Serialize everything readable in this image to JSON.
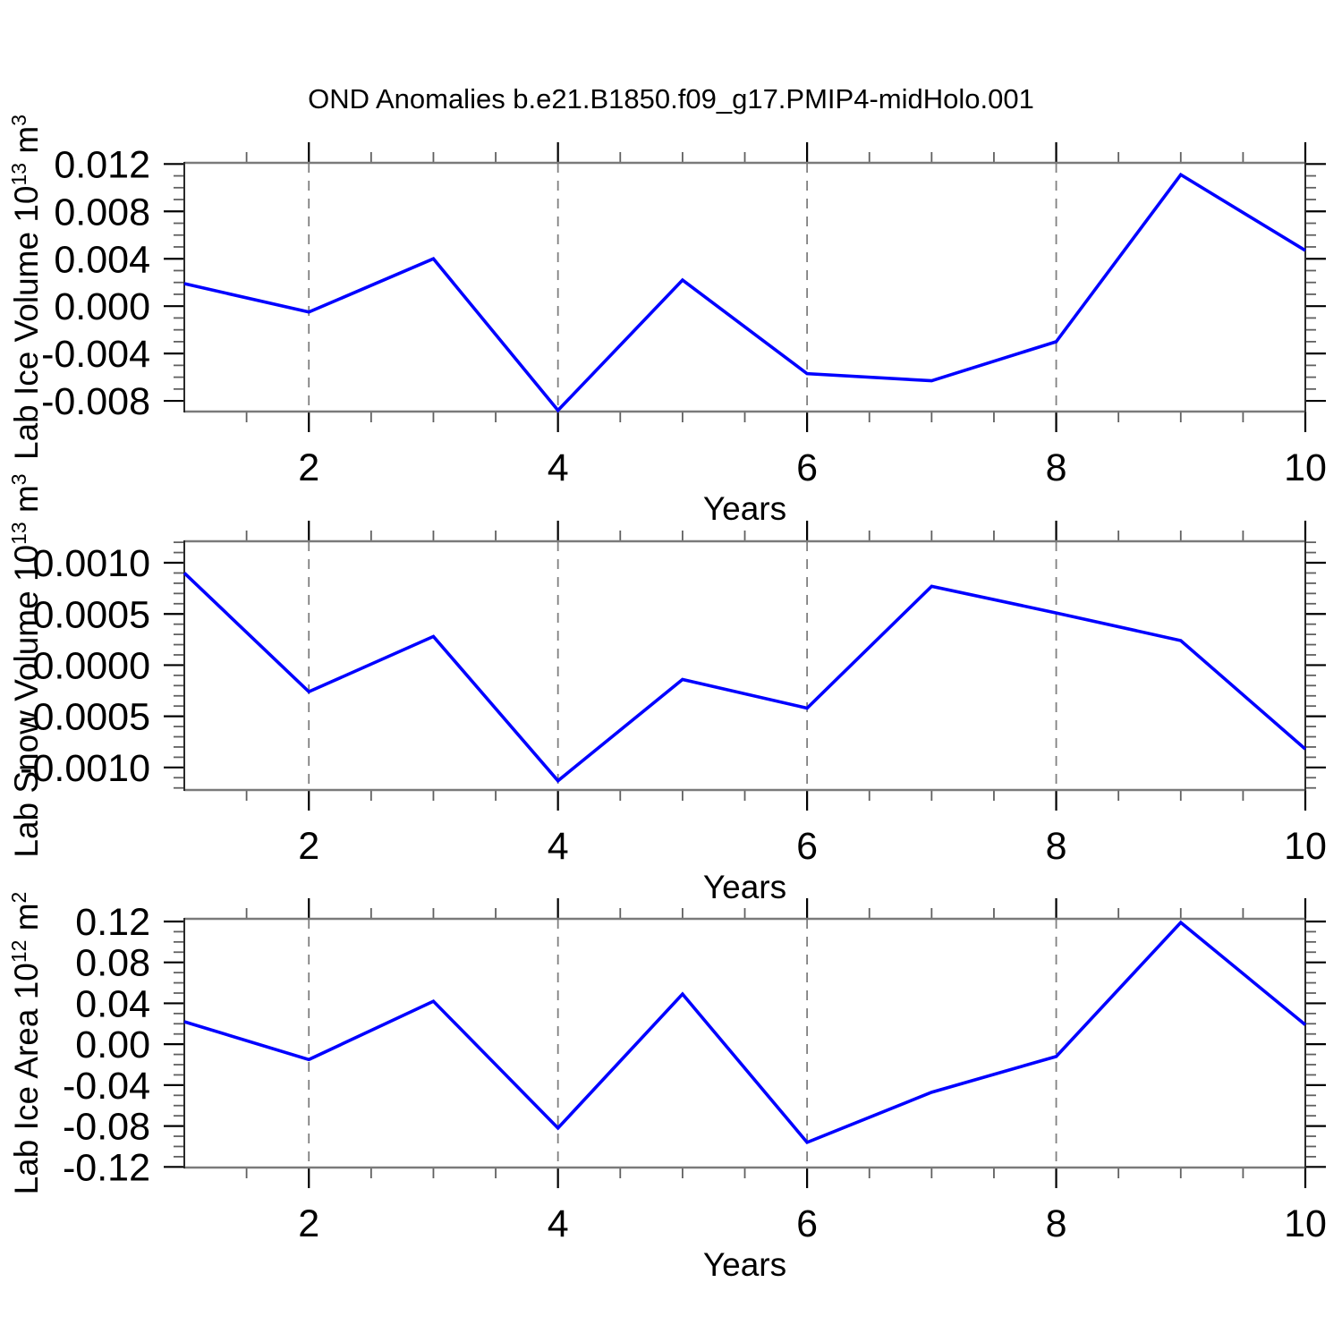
{
  "title": "OND Anomalies b.e21.B1850.f09_g17.PMIP4-midHolo.001",
  "colors": {
    "line": "#0000FF",
    "grid": "#808080",
    "frame_horizontal": "#7a7a7a",
    "frame_vertical": "#2a2a2a",
    "tick_major": "#000000",
    "tick_minor": "#606060",
    "text": "#000000",
    "background": "#FFFFFF"
  },
  "chart_data": [
    {
      "type": "line",
      "name": "lab-ice-volume",
      "ylabel_plain": "Lab Ice Volume 10^13 m^3",
      "ylabel_rich": [
        {
          "t": "Lab Ice Volume 10"
        },
        {
          "t": "13",
          "sup": true
        },
        {
          "t": " m"
        },
        {
          "t": "3",
          "sup": true
        }
      ],
      "xlabel": "Years",
      "x": [
        1,
        2,
        3,
        4,
        5,
        6,
        7,
        8,
        9,
        10
      ],
      "values": [
        0.0019,
        -0.0005,
        0.004,
        -0.0088,
        0.0022,
        -0.0057,
        -0.0063,
        -0.003,
        0.0111,
        0.0047
      ],
      "xlim": [
        1,
        10
      ],
      "ylim": [
        -0.0089,
        0.0121
      ],
      "xticks": {
        "values": [
          2,
          4,
          6,
          8,
          10
        ],
        "labels": [
          "2",
          "4",
          "6",
          "8",
          "10"
        ],
        "minor_step": 0.5
      },
      "yticks": {
        "values": [
          0.012,
          0.008,
          0.004,
          0,
          -0.004,
          -0.008
        ],
        "labels": [
          "0.012",
          "0.008",
          "0.004",
          "0.000",
          "-0.004",
          "-0.008"
        ],
        "minor_step": 0.001
      },
      "grid_x": [
        2,
        4,
        6,
        8
      ],
      "grid_style": "vertical-dashed",
      "legend": "none"
    },
    {
      "type": "line",
      "name": "lab-snow-volume",
      "ylabel_plain": "Lab Snow Volume 10^13 m^3",
      "ylabel_rich": [
        {
          "t": "Lab Snow Volume 10"
        },
        {
          "t": "13",
          "sup": true
        },
        {
          "t": " m"
        },
        {
          "t": "3",
          "sup": true
        }
      ],
      "xlabel": "Years",
      "x": [
        1,
        2,
        3,
        4,
        5,
        6,
        7,
        8,
        9,
        10
      ],
      "values": [
        0.0009,
        -0.00026,
        0.00028,
        -0.00113,
        -0.00014,
        -0.00042,
        0.00077,
        0.00051,
        0.00024,
        -0.00082
      ],
      "xlim": [
        1,
        10
      ],
      "ylim": [
        -0.00122,
        0.00121
      ],
      "xticks": {
        "values": [
          2,
          4,
          6,
          8,
          10
        ],
        "labels": [
          "2",
          "4",
          "6",
          "8",
          "10"
        ],
        "minor_step": 0.5
      },
      "yticks": {
        "values": [
          0.001,
          0.0005,
          0,
          -0.0005,
          -0.001
        ],
        "labels": [
          "0.0010",
          "0.0005",
          "0.0000",
          "-0.0005",
          "-0.0010"
        ],
        "minor_step": 0.0001
      },
      "grid_x": [
        2,
        4,
        6,
        8
      ],
      "grid_style": "vertical-dashed",
      "legend": "none"
    },
    {
      "type": "line",
      "name": "lab-ice-area",
      "ylabel_plain": "Lab Ice Area 10^12 m^2",
      "ylabel_rich": [
        {
          "t": "Lab Ice Area 10"
        },
        {
          "t": "12",
          "sup": true
        },
        {
          "t": " m"
        },
        {
          "t": "2",
          "sup": true
        }
      ],
      "xlabel": "Years",
      "x": [
        1,
        2,
        3,
        4,
        5,
        6,
        7,
        8,
        9,
        10
      ],
      "values": [
        0.022,
        -0.015,
        0.042,
        -0.082,
        0.049,
        -0.096,
        -0.047,
        -0.012,
        0.119,
        0.019
      ],
      "xlim": [
        1,
        10
      ],
      "ylim": [
        -0.1206,
        0.1226
      ],
      "xticks": {
        "values": [
          2,
          4,
          6,
          8,
          10
        ],
        "labels": [
          "2",
          "4",
          "6",
          "8",
          "10"
        ],
        "minor_step": 0.5
      },
      "yticks": {
        "values": [
          0.12,
          0.08,
          0.04,
          0,
          -0.04,
          -0.08,
          -0.12
        ],
        "labels": [
          "0.12",
          "0.08",
          "0.04",
          "0.00",
          "-0.04",
          "-0.08",
          "-0.12"
        ],
        "minor_step": 0.01
      },
      "grid_x": [
        2,
        4,
        6,
        8
      ],
      "grid_style": "vertical-dashed",
      "legend": "none"
    }
  ]
}
